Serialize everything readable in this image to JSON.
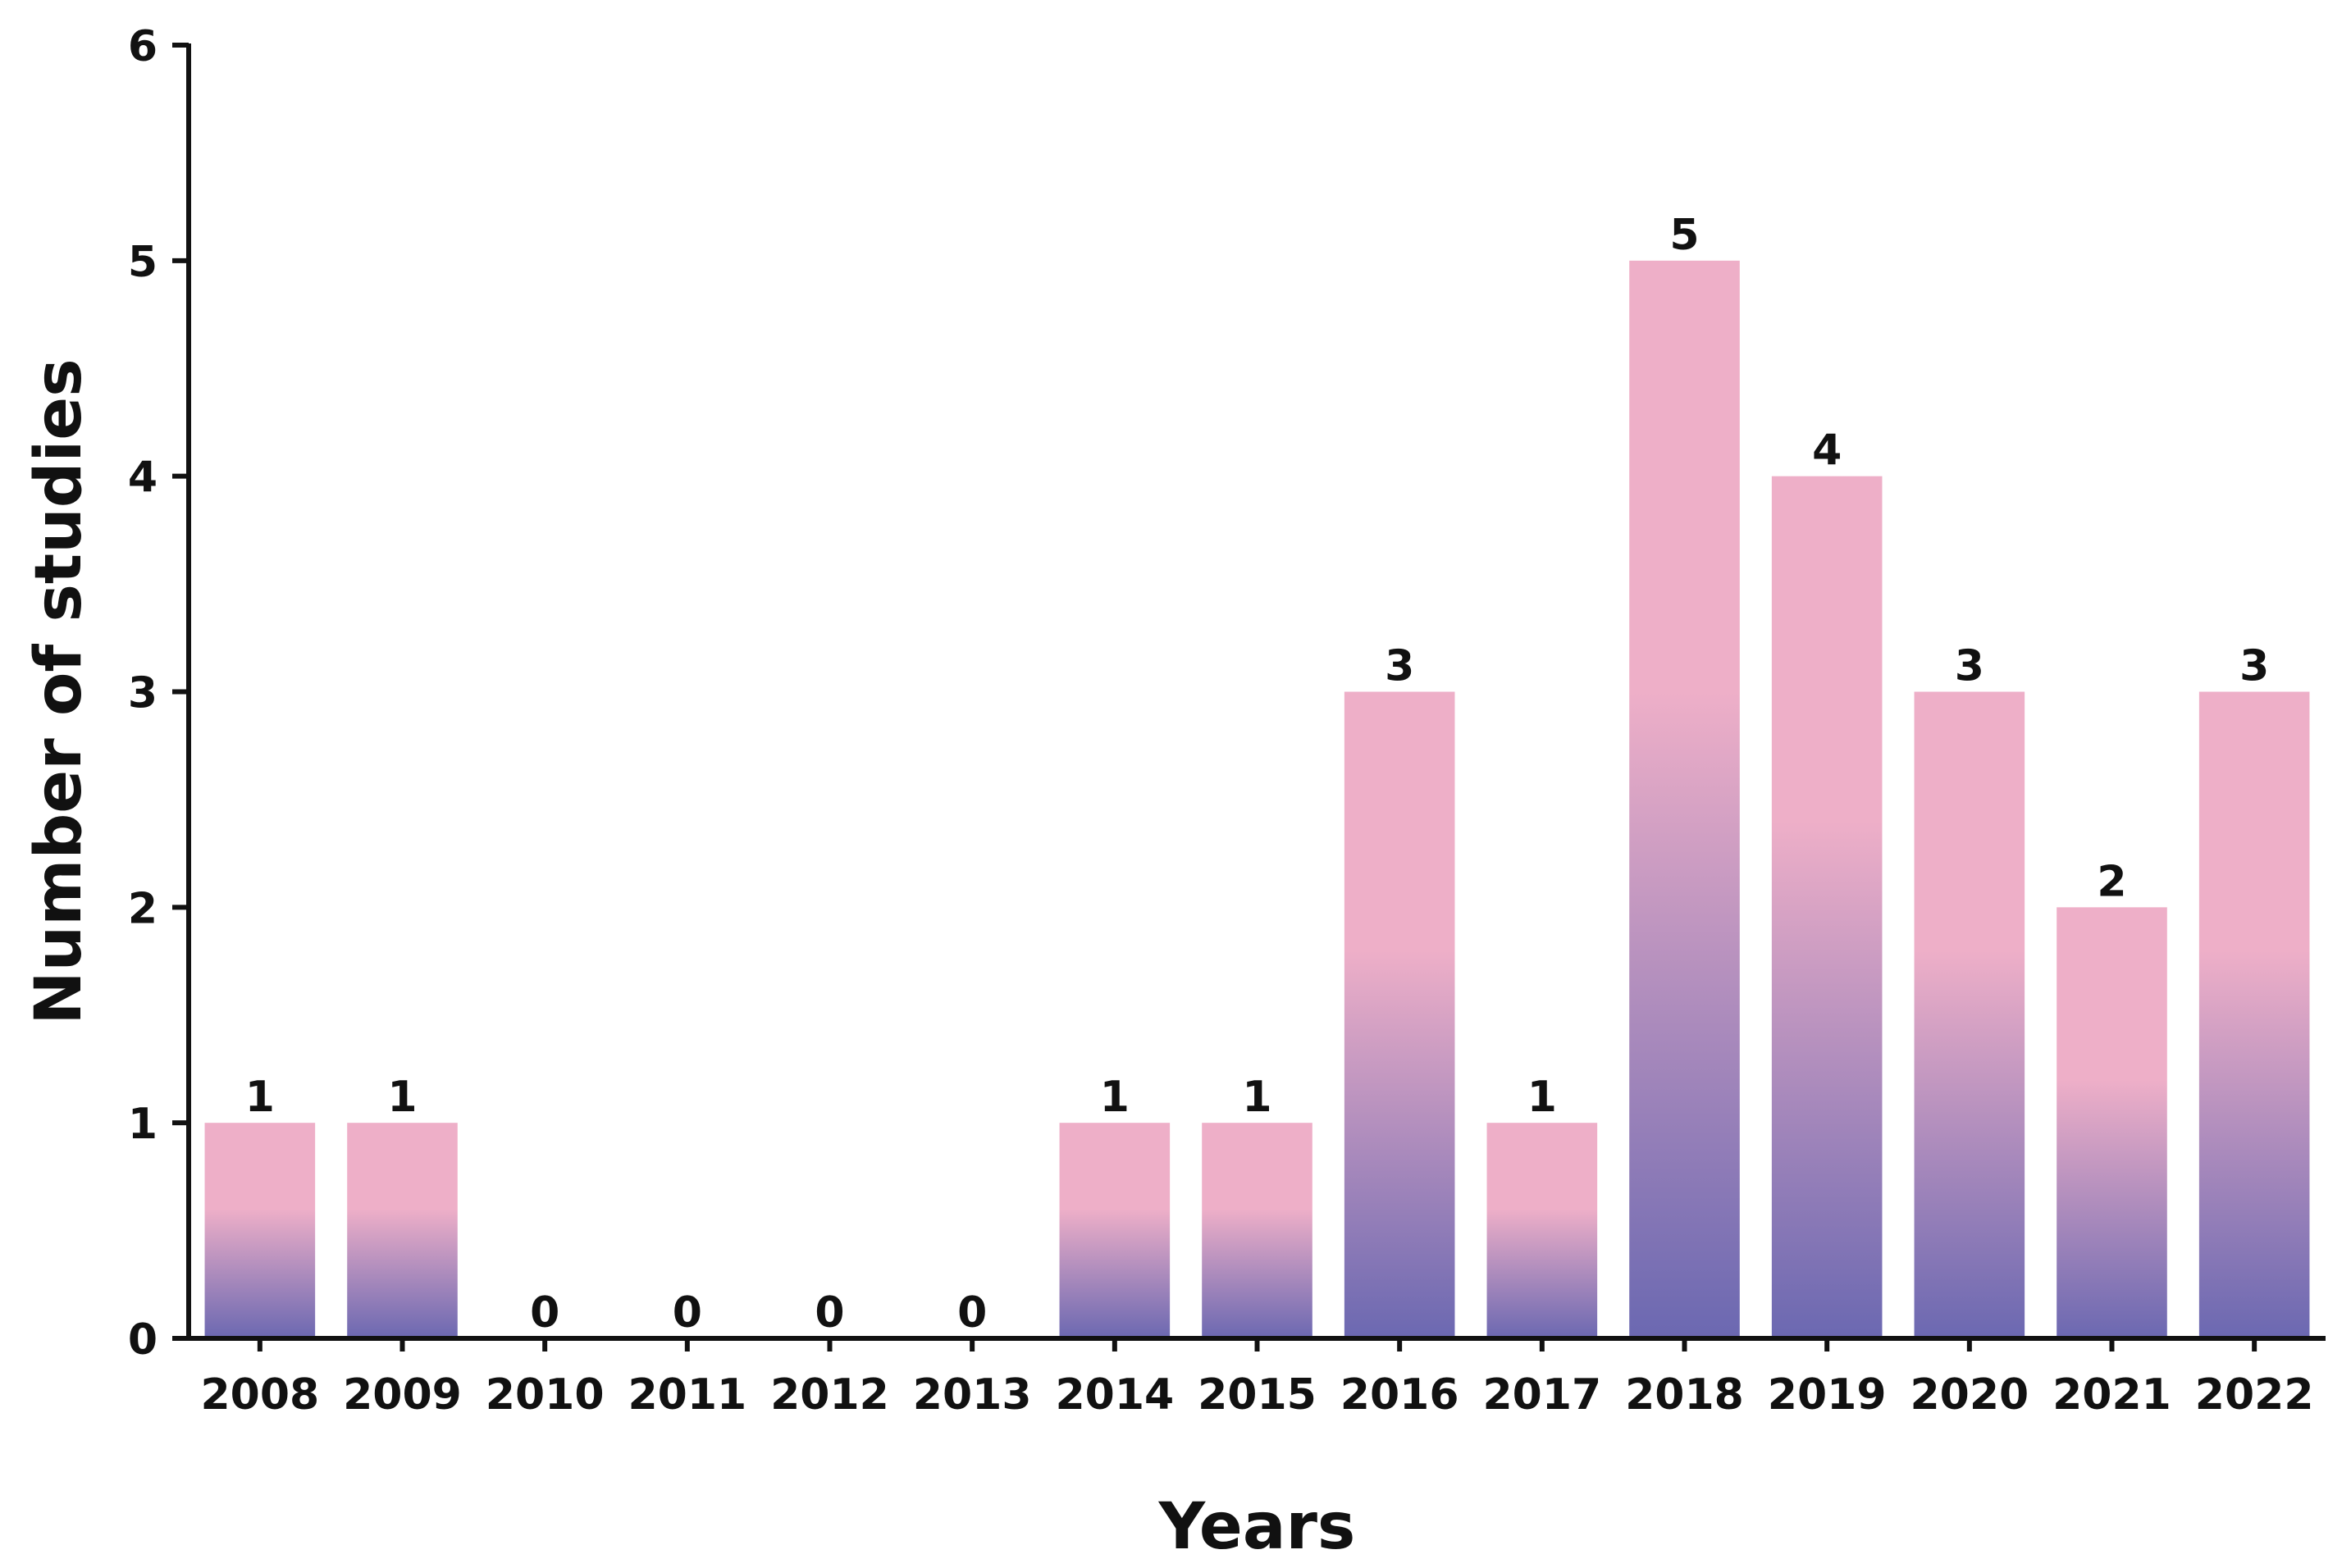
{
  "chart_data": {
    "type": "bar",
    "title": "",
    "xlabel": "Years",
    "ylabel": "Number of studies",
    "categories": [
      "2008",
      "2009",
      "2010",
      "2011",
      "2012",
      "2013",
      "2014",
      "2015",
      "2016",
      "2017",
      "2018",
      "2019",
      "2020",
      "2021",
      "2022"
    ],
    "values": [
      1,
      1,
      0,
      0,
      0,
      0,
      1,
      1,
      3,
      1,
      5,
      4,
      3,
      2,
      3
    ],
    "ylim": [
      0,
      6
    ],
    "yticks": [
      0,
      1,
      2,
      3,
      4,
      5,
      6
    ],
    "grid": false,
    "legend": "none",
    "colors": {
      "bar_top": "#EEAFC8",
      "bar_bottom": "#6B68B1",
      "axis": "#111111"
    }
  }
}
